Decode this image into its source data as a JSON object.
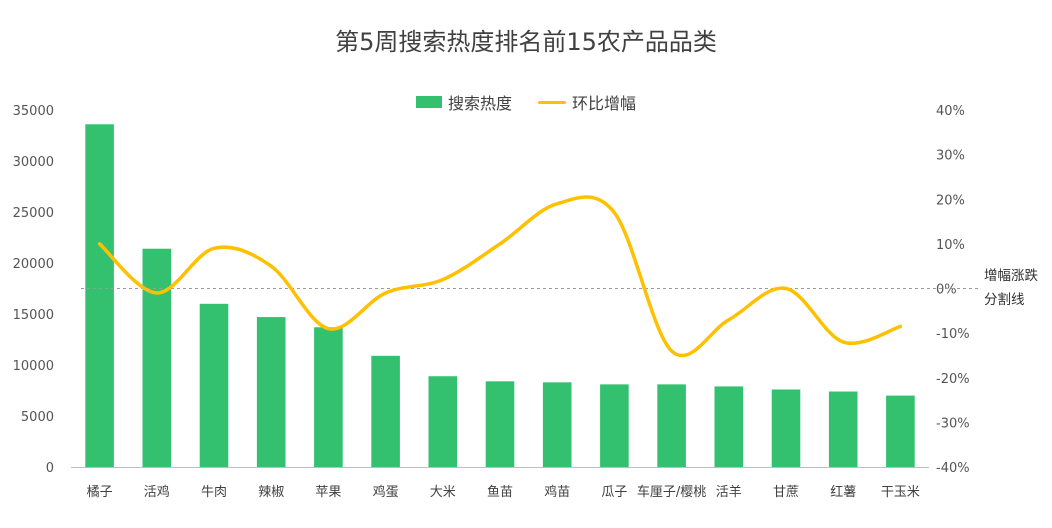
{
  "chart_data": {
    "type": "bar",
    "title": "第5周搜索热度排名前15农产品品类",
    "categories": [
      "橘子",
      "活鸡",
      "牛肉",
      "辣椒",
      "苹果",
      "鸡蛋",
      "大米",
      "鱼苗",
      "鸡苗",
      "瓜子",
      "车厘子/樱桃",
      "活羊",
      "甘蔗",
      "红薯",
      "干玉米"
    ],
    "series": [
      {
        "name": "搜索热度",
        "type": "bar",
        "axis": "left",
        "color": "#33C170",
        "values": [
          33600,
          21400,
          16000,
          14700,
          13700,
          10900,
          8900,
          8400,
          8300,
          8100,
          8100,
          7900,
          7600,
          7400,
          7000
        ]
      },
      {
        "name": "环比增幅",
        "type": "line",
        "axis": "right",
        "smooth": true,
        "color": "#FFC000",
        "values": [
          10,
          -1,
          9,
          5,
          -9,
          -1,
          2,
          10,
          19,
          17,
          -14,
          -7,
          0,
          -12,
          -8.5
        ]
      }
    ],
    "y_left": {
      "min": 0,
      "max": 35000,
      "step": 5000,
      "ticks": [
        "0",
        "5000",
        "10000",
        "15000",
        "20000",
        "25000",
        "30000",
        "35000"
      ]
    },
    "y_right": {
      "min": -40,
      "max": 40,
      "step": 10,
      "ticks": [
        "-40%",
        "-30%",
        "-20%",
        "-10%",
        "0%",
        "10%",
        "20%",
        "30%",
        "40%"
      ]
    },
    "reference_line": {
      "value": 0,
      "axis": "right",
      "style": "dashed",
      "label_lines": [
        "增幅涨跌",
        "分割线"
      ]
    },
    "grid": false,
    "legend": "top-center"
  }
}
